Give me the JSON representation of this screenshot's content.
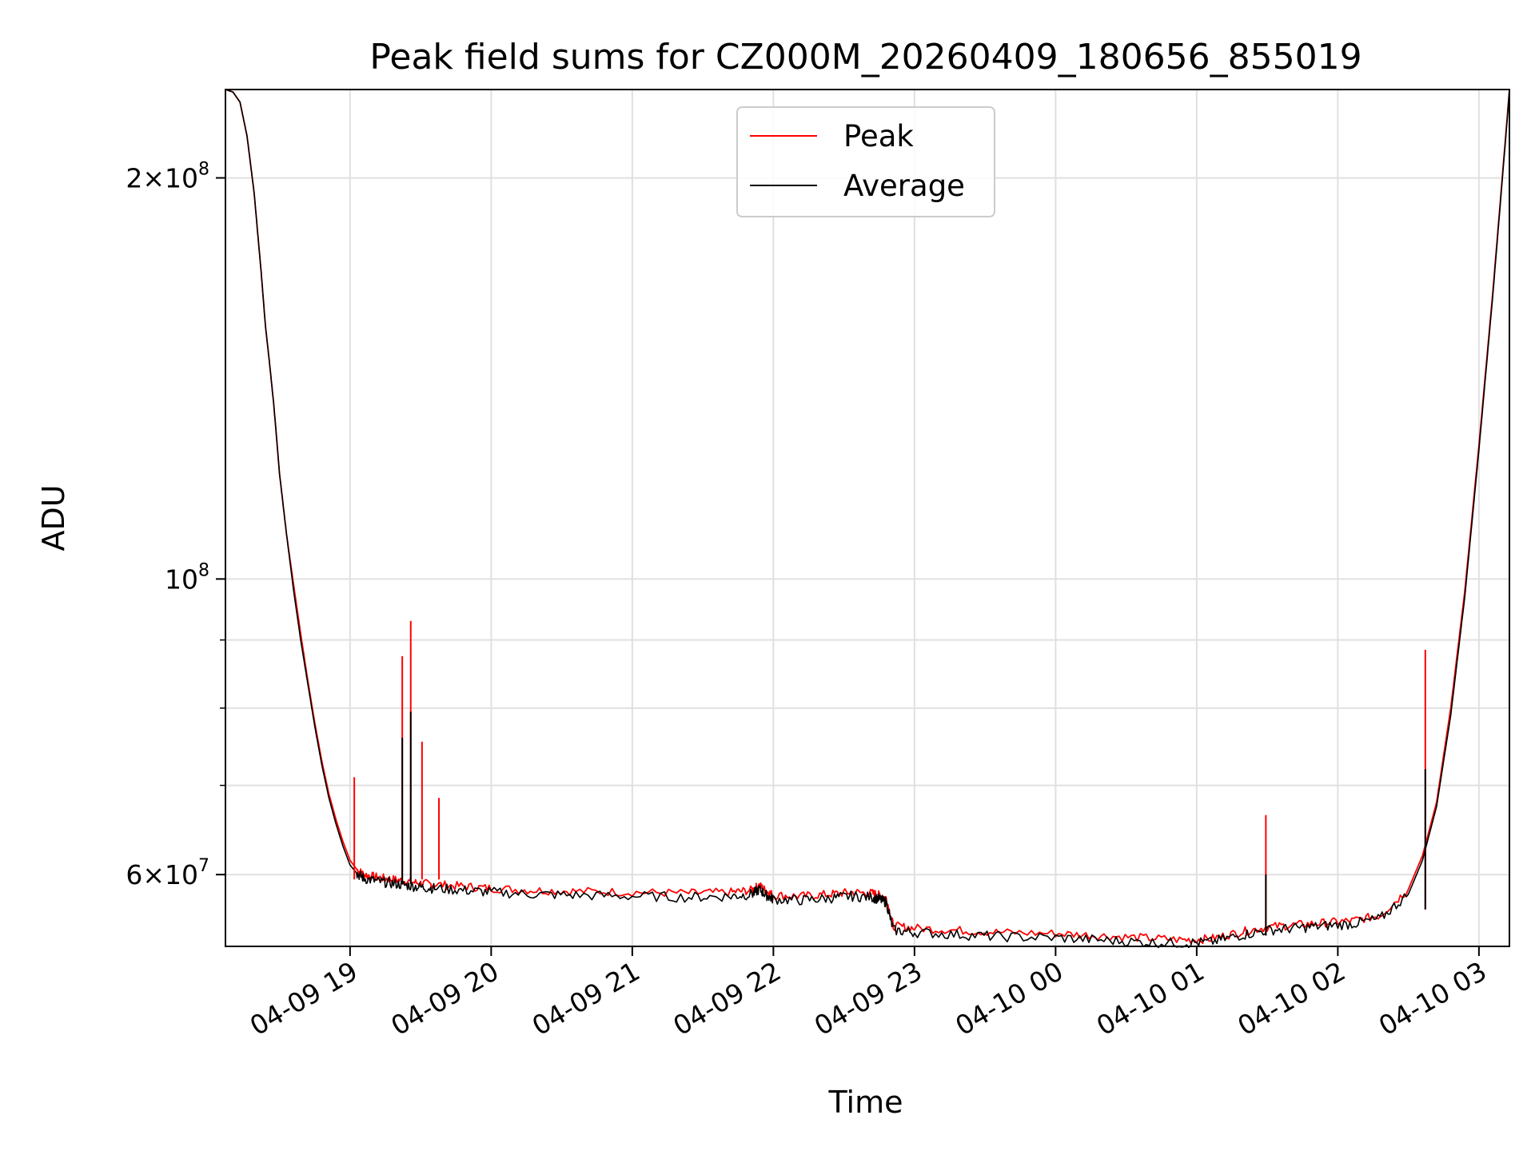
{
  "chart_data": {
    "type": "line",
    "title": "Peak field sums for CZ000M_20260409_180656_855019",
    "xlabel": "Time",
    "ylabel": "ADU",
    "yscale": "log",
    "ylim": [
      53000000,
      233000000
    ],
    "xlim": [
      18.117,
      27.216
    ],
    "grid": true,
    "legend_position": "top-center",
    "x_ticks": [
      {
        "value": 19,
        "label": "04-09 19"
      },
      {
        "value": 20,
        "label": "04-09 20"
      },
      {
        "value": 21,
        "label": "04-09 21"
      },
      {
        "value": 22,
        "label": "04-09 22"
      },
      {
        "value": 23,
        "label": "04-09 23"
      },
      {
        "value": 24,
        "label": "04-10 00"
      },
      {
        "value": 25,
        "label": "04-10 01"
      },
      {
        "value": 26,
        "label": "04-10 02"
      },
      {
        "value": 27,
        "label": "04-10 03"
      }
    ],
    "y_ticks_major": [
      {
        "value": 60000000,
        "base": "6×10",
        "exp": "7"
      },
      {
        "value": 100000000,
        "base": "10",
        "exp": "8"
      },
      {
        "value": 200000000,
        "base": "2×10",
        "exp": "8"
      }
    ],
    "y_ticks_minor": [
      70000000,
      80000000,
      90000000
    ],
    "series": [
      {
        "name": "Peak",
        "color": "#ff0000",
        "x": [
          18.117,
          18.17,
          18.22,
          18.27,
          18.32,
          18.37,
          18.4,
          18.43,
          18.46,
          18.5,
          18.55,
          18.6,
          18.65,
          18.7,
          18.75,
          18.8,
          18.85,
          18.9,
          18.95,
          19.0,
          19.05,
          19.1,
          19.2,
          19.3,
          19.4,
          19.5,
          19.6,
          19.8,
          20.0,
          20.3,
          20.6,
          21.0,
          21.4,
          21.7,
          21.85,
          21.9,
          21.95,
          22.0,
          22.2,
          22.4,
          22.55,
          22.7,
          22.75,
          22.8,
          22.85,
          23.0,
          23.3,
          23.6,
          24.0,
          24.3,
          24.6,
          24.9,
          25.1,
          25.3,
          25.5,
          25.7,
          25.9,
          26.1,
          26.3,
          26.5,
          26.6,
          26.7,
          26.8,
          26.9,
          27.0,
          27.1,
          27.2,
          27.216
        ],
        "y": [
          233000000,
          232000000,
          228000000,
          215000000,
          195000000,
          170000000,
          155000000,
          145000000,
          135000000,
          120000000,
          108000000,
          99000000,
          91000000,
          84000000,
          78000000,
          73000000,
          69000000,
          66000000,
          63500000,
          61500000,
          60500000,
          60000000,
          59700000,
          59500000,
          59300000,
          59100000,
          59000000,
          58800000,
          58600000,
          58400000,
          58300000,
          58200000,
          58100000,
          58200000,
          58400000,
          58900000,
          58300000,
          57900000,
          57800000,
          58000000,
          58200000,
          58100000,
          57900000,
          57600000,
          54900000,
          54700000,
          54500000,
          54300000,
          54200000,
          54000000,
          53800000,
          53600000,
          53700000,
          54300000,
          54800000,
          55000000,
          55200000,
          55400000,
          55900000,
          58500000,
          62000000,
          68000000,
          80000000,
          98000000,
          126000000,
          165000000,
          222000000,
          233000000
        ]
      },
      {
        "name": "Average",
        "color": "#000000",
        "x": [
          18.117,
          18.17,
          18.22,
          18.27,
          18.32,
          18.37,
          18.4,
          18.43,
          18.46,
          18.5,
          18.55,
          18.6,
          18.65,
          18.7,
          18.75,
          18.8,
          18.85,
          18.9,
          18.95,
          19.0,
          19.05,
          19.1,
          19.2,
          19.3,
          19.4,
          19.5,
          19.6,
          19.8,
          20.0,
          20.3,
          20.6,
          21.0,
          21.4,
          21.7,
          21.85,
          21.9,
          21.95,
          22.0,
          22.2,
          22.4,
          22.55,
          22.7,
          22.75,
          22.8,
          22.85,
          23.0,
          23.3,
          23.6,
          24.0,
          24.3,
          24.6,
          24.9,
          25.1,
          25.3,
          25.5,
          25.7,
          25.9,
          26.1,
          26.3,
          26.5,
          26.6,
          26.7,
          26.8,
          26.9,
          27.0,
          27.1,
          27.2,
          27.216
        ],
        "y": [
          233000000,
          232000000,
          228000000,
          215000000,
          195000000,
          170000000,
          155000000,
          145000000,
          135000000,
          120000000,
          108000000,
          98000000,
          90000000,
          83500000,
          77500000,
          72500000,
          68500000,
          65500000,
          63000000,
          61000000,
          60100000,
          59600000,
          59300000,
          59100000,
          58900000,
          58700000,
          58600000,
          58400000,
          58200000,
          58000000,
          57900000,
          57800000,
          57700000,
          57800000,
          58000000,
          58500000,
          57900000,
          57500000,
          57400000,
          57600000,
          57800000,
          57700000,
          57500000,
          57200000,
          54500000,
          54300000,
          54100000,
          53900000,
          53800000,
          53600000,
          53400000,
          53300000,
          53400000,
          54000000,
          54500000,
          54700000,
          54900000,
          55100000,
          55600000,
          58000000,
          61500000,
          67500000,
          79000000,
          97000000,
          125000000,
          164000000,
          221000000,
          233000000
        ]
      }
    ],
    "spikes": [
      {
        "series": "Peak",
        "x": 19.03,
        "y": 71000000
      },
      {
        "series": "Peak",
        "x": 19.37,
        "y": 87500000
      },
      {
        "series": "Peak",
        "x": 19.43,
        "y": 93000000
      },
      {
        "series": "Peak",
        "x": 19.51,
        "y": 75500000
      },
      {
        "series": "Peak",
        "x": 19.63,
        "y": 68500000
      },
      {
        "series": "Peak",
        "x": 25.49,
        "y": 66500000
      },
      {
        "series": "Peak",
        "x": 26.62,
        "y": 88500000
      },
      {
        "series": "Average",
        "x": 19.37,
        "y": 76000000
      },
      {
        "series": "Average",
        "x": 19.43,
        "y": 79500000
      },
      {
        "series": "Average",
        "x": 25.49,
        "y": 60000000
      },
      {
        "series": "Average",
        "x": 26.62,
        "y": 72000000
      }
    ],
    "legend": [
      {
        "label": "Peak",
        "color": "#ff0000"
      },
      {
        "label": "Average",
        "color": "#000000"
      }
    ]
  }
}
